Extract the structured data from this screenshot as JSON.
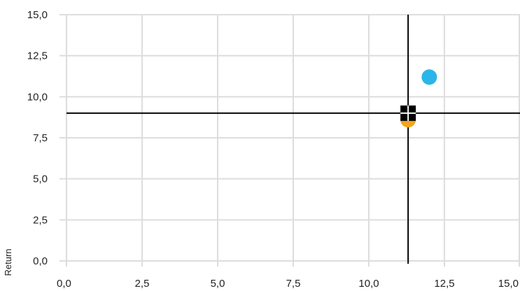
{
  "chart_data": {
    "type": "scatter",
    "title": "",
    "xlabel": "",
    "ylabel": "Return",
    "xlim": [
      0,
      15
    ],
    "ylim": [
      0,
      15
    ],
    "x_ticks": [
      "0,0",
      "2,5",
      "5,0",
      "7,5",
      "10,0",
      "12,5",
      "15,0"
    ],
    "y_ticks": [
      "0,0",
      "2,5",
      "5,0",
      "7,5",
      "10,0",
      "12,5",
      "15,0"
    ],
    "grid": true,
    "series": [
      {
        "x": [
          11.3
        ],
        "y": [
          8.6
        ],
        "color": "#F2A51C",
        "marker": "circle"
      },
      {
        "x": [
          12.0
        ],
        "y": [
          11.2
        ],
        "color": "#2BB5E8",
        "marker": "circle"
      },
      {
        "x": [
          11.3
        ],
        "y": [
          9.0
        ],
        "color": "#000000",
        "marker": "square"
      }
    ],
    "reference_lines": {
      "x": 11.3,
      "y": 9.0,
      "color": "#000000"
    }
  }
}
